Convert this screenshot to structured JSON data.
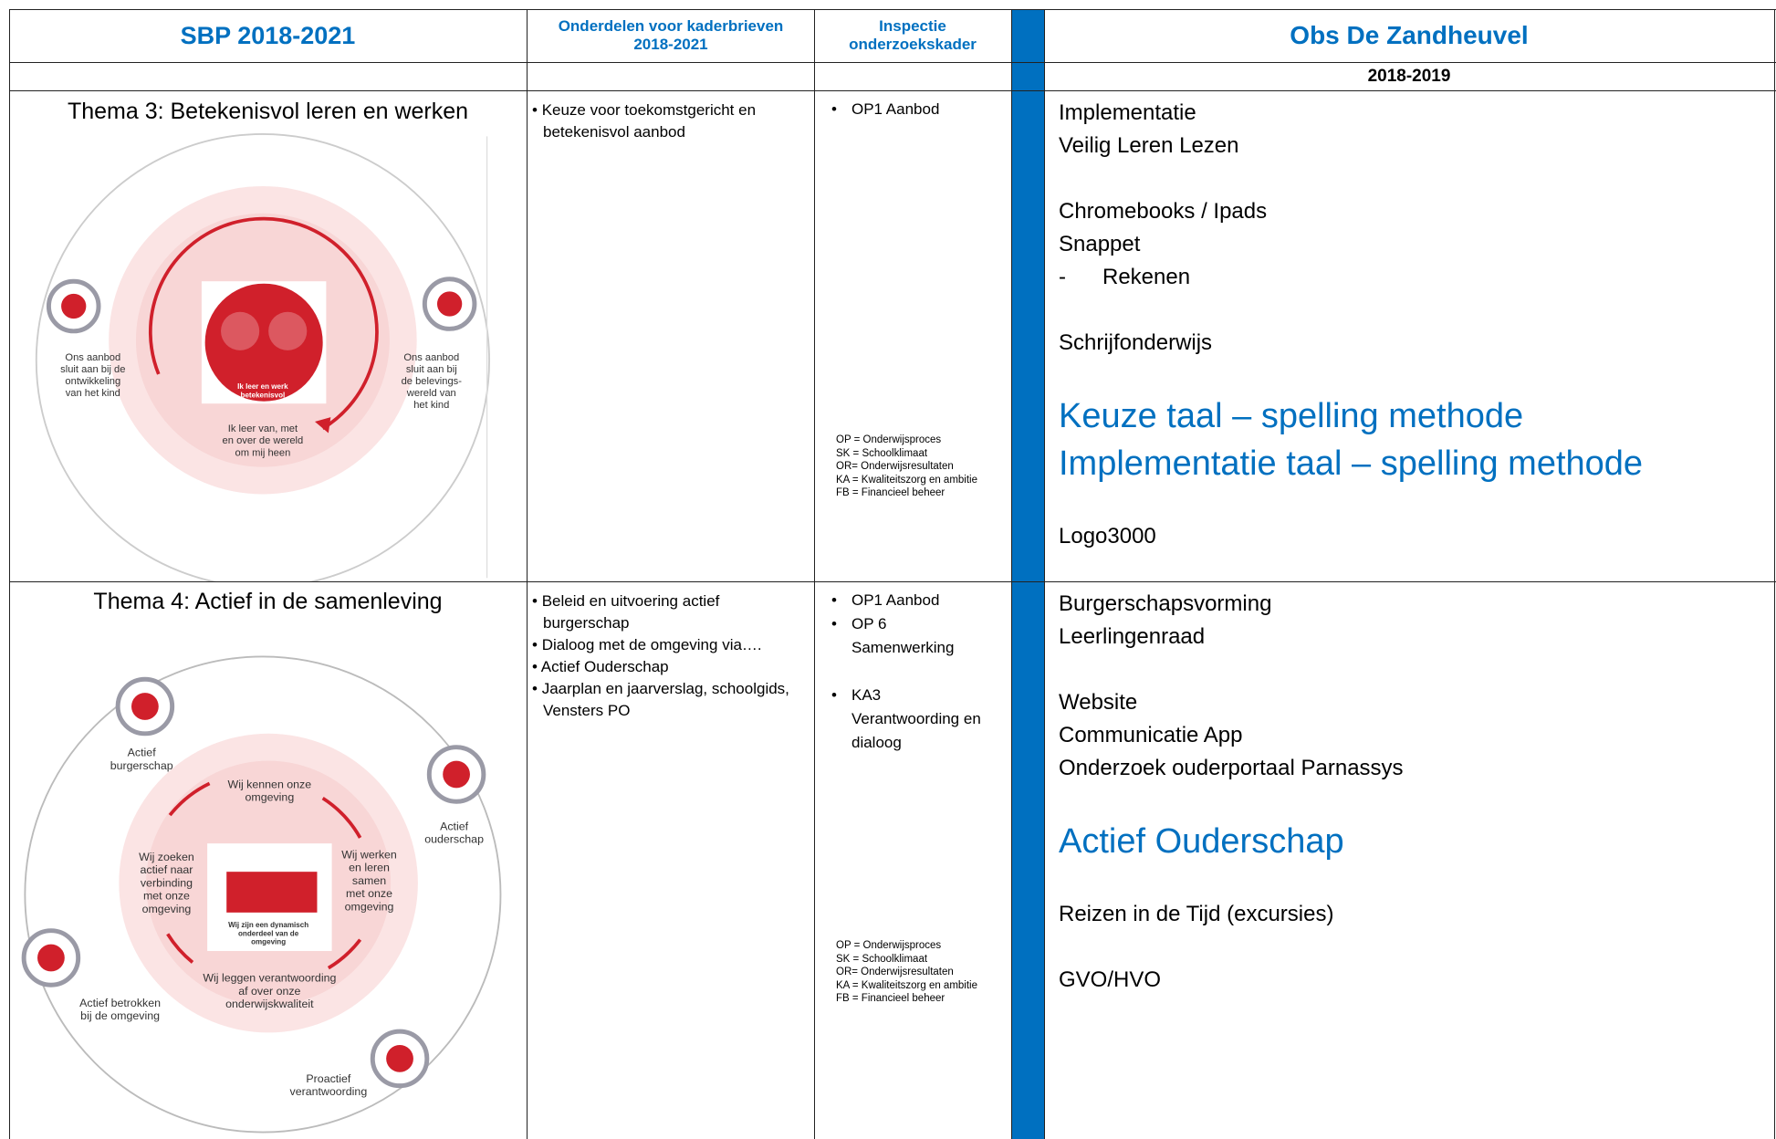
{
  "header": {
    "col1": "SBP 2018-2021",
    "col2": "Onderdelen voor kaderbrieven 2018-2021",
    "col3": "Inspectie onderzoekskader",
    "col5": "Obs De Zandheuvel"
  },
  "subheader": {
    "year": "2018-2019"
  },
  "rows": [
    {
      "theme": "Thema 3: Betekenisvol leren en werken",
      "diagram": {
        "center": [
          "Ik leer en werk",
          "betekenisvol"
        ],
        "labels": [
          [
            "Ons aanbod",
            "sluit aan bij de",
            "ontwikkeling",
            "van het kind"
          ],
          [
            "Ons aanbod",
            "sluit aan bij",
            "de belevings-",
            "wereld van",
            "het kind"
          ],
          [
            "Ik leer van, met",
            "en over de wereld",
            "om mij heen"
          ]
        ]
      },
      "onderdelen": [
        "Keuze voor toekomstgericht en betekenisvol aanbod"
      ],
      "inspectie": [
        [
          "OP1 Aanbod"
        ]
      ],
      "legend": [
        "OP = Onderwijsproces",
        "SK = Schoolklimaat",
        "OR= Onderwijsresultaten",
        "KA = Kwaliteitszorg en ambitie",
        "FB = Financieel beheer"
      ],
      "plan": [
        {
          "lines": [
            "Implementatie",
            "Veilig Leren Lezen"
          ]
        },
        {
          "lines": [
            "Chromebooks / Ipads",
            "Snappet"
          ],
          "sublist": [
            "Rekenen"
          ]
        },
        {
          "lines": [
            "Schrijfonderwijs"
          ]
        },
        {
          "lines": [
            "Keuze taal – spelling methode",
            "Implementatie taal – spelling methode"
          ],
          "emphasis": true
        },
        {
          "lines": [
            "Logo3000"
          ]
        }
      ]
    },
    {
      "theme": "Thema 4: Actief in de samenleving",
      "diagram": {
        "center": [
          "Wij zijn een dynamisch",
          "onderdeel van de",
          "omgeving"
        ],
        "labels": [
          [
            "Actief",
            "burgerschap"
          ],
          [
            "Actief",
            "ouderschap"
          ],
          [
            "Actief betrokken",
            "bij de omgeving"
          ],
          [
            "Proactief",
            "verantwoording"
          ],
          [
            "Wij kennen onze",
            "omgeving"
          ],
          [
            "Wij werken",
            "en leren",
            "samen",
            "met onze",
            "omgeving"
          ],
          [
            "Wij leggen verantwoording",
            "af over onze",
            "onderwijskwaliteit"
          ],
          [
            "Wij zoeken",
            "actief naar",
            "verbinding",
            "met onze",
            "omgeving"
          ]
        ]
      },
      "onderdelen": [
        "Beleid en uitvoering actief burgerschap",
        "Dialoog met de omgeving via….",
        "Actief Ouderschap",
        "Jaarplan en jaarverslag, schoolgids, Vensters PO"
      ],
      "inspectie": [
        [
          "OP1 Aanbod",
          "OP 6 Samenwerking"
        ],
        [
          "KA3 Verantwoording en dialoog"
        ]
      ],
      "legend": [
        "OP = Onderwijsproces",
        "SK = Schoolklimaat",
        "OR= Onderwijsresultaten",
        "KA = Kwaliteitszorg en ambitie",
        "FB = Financieel beheer"
      ],
      "plan": [
        {
          "lines": [
            "Burgerschapsvorming",
            "Leerlingenraad"
          ]
        },
        {
          "lines": [
            "Website",
            "Communicatie App",
            "Onderzoek ouderportaal Parnassys"
          ]
        },
        {
          "lines": [
            "Actief Ouderschap"
          ],
          "emphasis": true
        },
        {
          "lines": [
            "Reizen in de Tijd  (excursies)"
          ]
        },
        {
          "lines": [
            "GVO/HVO"
          ]
        }
      ]
    }
  ]
}
